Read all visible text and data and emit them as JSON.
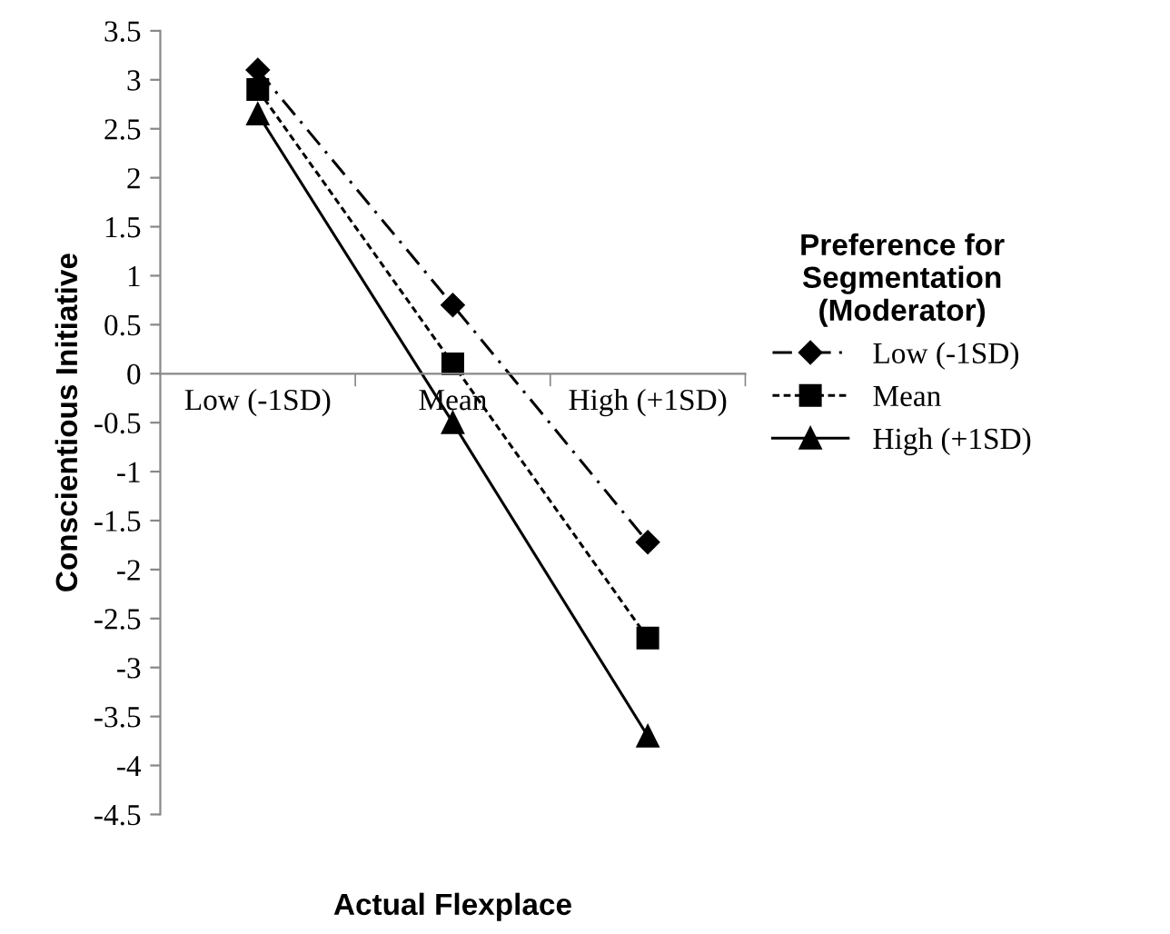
{
  "chart_data": {
    "type": "line",
    "xlabel": "Actual Flexplace",
    "ylabel": "Conscientious Initiative",
    "categories": [
      "Low (-1SD)",
      "Mean",
      "High (+1SD)"
    ],
    "series": [
      {
        "name": "Low (-1SD)",
        "color": "#000000",
        "marker": "diamond",
        "line_style": "dashed",
        "values": [
          3.1,
          0.7,
          -1.72
        ]
      },
      {
        "name": "Mean",
        "color": "#000000",
        "marker": "square",
        "line_style": "dotted",
        "values": [
          2.9,
          0.1,
          -2.7
        ]
      },
      {
        "name": "High (+1SD)",
        "color": "#000000",
        "marker": "triangle",
        "line_style": "solid",
        "values": [
          2.65,
          -0.5,
          -3.7
        ]
      }
    ],
    "ylim": [
      -4.5,
      3.5
    ],
    "yticks": [
      -4.5,
      -4,
      -3.5,
      -3,
      -2.5,
      -2,
      -1.5,
      -1,
      -0.5,
      0,
      0.5,
      1,
      1.5,
      2,
      2.5,
      3,
      3.5
    ],
    "grid": false,
    "legend": "right",
    "legend_title": "Preference for\nSegmentation\n(Moderator)"
  }
}
